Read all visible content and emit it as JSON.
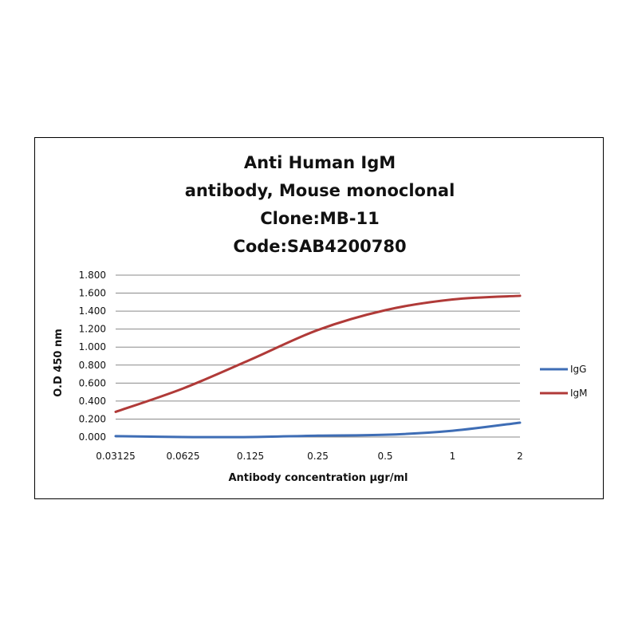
{
  "chart_data": {
    "type": "line",
    "title": [
      "Anti Human IgM",
      "antibody, Mouse monoclonal",
      "Clone:MB-11",
      "Code:SAB4200780"
    ],
    "xlabel": "Antibody concentration µgr/ml",
    "ylabel": "O.D 450 nm",
    "x_scale": "log",
    "categories": [
      "0.03125",
      "0.0625",
      "0.125",
      "0.25",
      "0.5",
      "1",
      "2"
    ],
    "ylim": [
      0,
      1.8
    ],
    "yticks": [
      "0.000",
      "0.200",
      "0.400",
      "0.600",
      "0.800",
      "1.000",
      "1.200",
      "1.400",
      "1.600",
      "1.800"
    ],
    "grid": true,
    "legend": "right",
    "series": [
      {
        "name": "IgG",
        "color": "#3E6DB5",
        "values": [
          0.01,
          0.0,
          0.0,
          0.015,
          0.025,
          0.07,
          0.16
        ]
      },
      {
        "name": "IgM",
        "color": "#B03A38",
        "values": [
          0.28,
          0.54,
          0.86,
          1.19,
          1.41,
          1.53,
          1.57
        ]
      }
    ]
  }
}
